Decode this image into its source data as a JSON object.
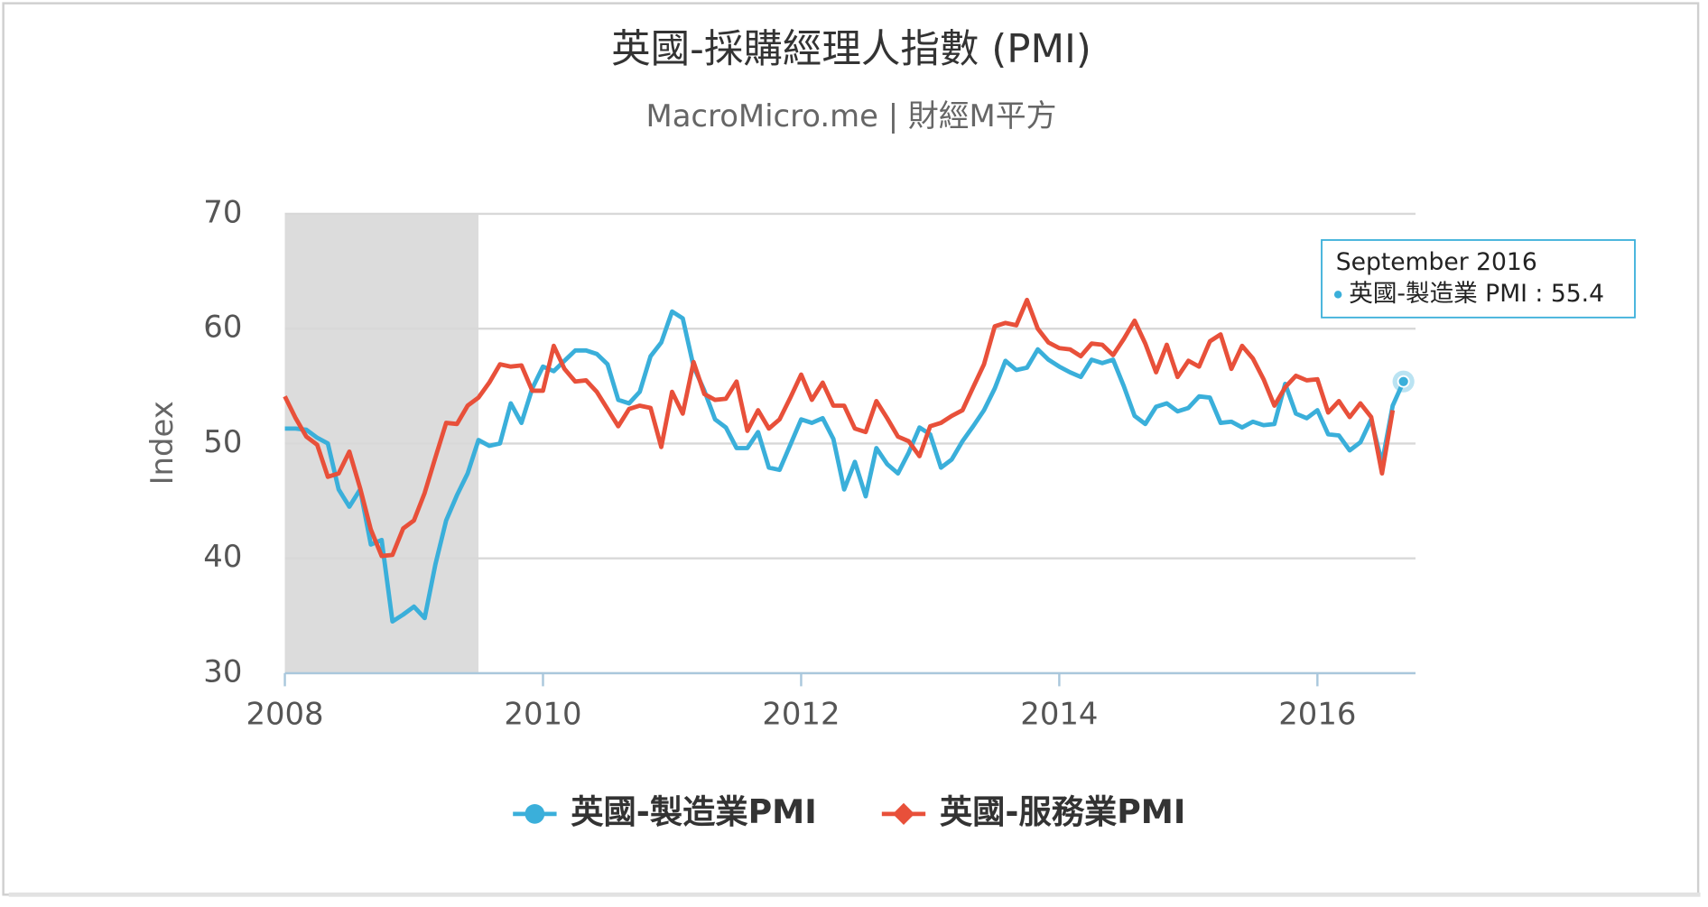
{
  "chart_data": {
    "type": "line",
    "title": "英國-採購經理人指數 (PMI)",
    "subtitle": "MacroMicro.me | 財經M平方",
    "y_label": "Index",
    "x": [
      "2008-01",
      "2008-02",
      "2008-03",
      "2008-04",
      "2008-05",
      "2008-06",
      "2008-07",
      "2008-08",
      "2008-09",
      "2008-10",
      "2008-11",
      "2008-12",
      "2009-01",
      "2009-02",
      "2009-03",
      "2009-04",
      "2009-05",
      "2009-06",
      "2009-07",
      "2009-08",
      "2009-09",
      "2009-10",
      "2009-11",
      "2009-12",
      "2010-01",
      "2010-02",
      "2010-03",
      "2010-04",
      "2010-05",
      "2010-06",
      "2010-07",
      "2010-08",
      "2010-09",
      "2010-10",
      "2010-11",
      "2010-12",
      "2011-01",
      "2011-02",
      "2011-03",
      "2011-04",
      "2011-05",
      "2011-06",
      "2011-07",
      "2011-08",
      "2011-09",
      "2011-10",
      "2011-11",
      "2011-12",
      "2012-01",
      "2012-02",
      "2012-03",
      "2012-04",
      "2012-05",
      "2012-06",
      "2012-07",
      "2012-08",
      "2012-09",
      "2012-10",
      "2012-11",
      "2012-12",
      "2013-01",
      "2013-02",
      "2013-03",
      "2013-04",
      "2013-05",
      "2013-06",
      "2013-07",
      "2013-08",
      "2013-09",
      "2013-10",
      "2013-11",
      "2013-12",
      "2014-01",
      "2014-02",
      "2014-03",
      "2014-04",
      "2014-05",
      "2014-06",
      "2014-07",
      "2014-08",
      "2014-09",
      "2014-10",
      "2014-11",
      "2014-12",
      "2015-01",
      "2015-02",
      "2015-03",
      "2015-04",
      "2015-05",
      "2015-06",
      "2015-07",
      "2015-08",
      "2015-09",
      "2015-10",
      "2015-11",
      "2015-12",
      "2016-01",
      "2016-02",
      "2016-03",
      "2016-04",
      "2016-05",
      "2016-06",
      "2016-07",
      "2016-08",
      "2016-09"
    ],
    "series": [
      {
        "name": "英國-製造業PMI",
        "color": "#3aafda",
        "marker": "circle",
        "values": [
          51.3,
          51.3,
          51.2,
          50.5,
          50.0,
          46.0,
          44.5,
          46.0,
          41.2,
          41.6,
          34.5,
          35.1,
          35.8,
          34.8,
          39.5,
          43.3,
          45.5,
          47.4,
          50.3,
          49.8,
          50.0,
          53.5,
          51.8,
          54.8,
          56.7,
          56.3,
          57.2,
          58.1,
          58.1,
          57.8,
          56.9,
          53.8,
          53.5,
          54.5,
          57.6,
          58.8,
          61.5,
          60.9,
          56.7,
          54.6,
          52.1,
          51.4,
          49.6,
          49.6,
          51.0,
          47.9,
          47.7,
          49.9,
          52.1,
          51.8,
          52.2,
          50.4,
          46.0,
          48.4,
          45.4,
          49.6,
          48.2,
          47.4,
          49.2,
          51.4,
          50.8,
          47.9,
          48.6,
          50.2,
          51.5,
          52.9,
          54.8,
          57.2,
          56.4,
          56.6,
          58.2,
          57.3,
          56.7,
          56.2,
          55.8,
          57.3,
          57.0,
          57.3,
          55.0,
          52.4,
          51.7,
          53.2,
          53.5,
          52.8,
          53.1,
          54.1,
          54.0,
          51.8,
          51.9,
          51.4,
          51.9,
          51.6,
          51.7,
          55.2,
          52.6,
          52.2,
          52.9,
          50.8,
          50.7,
          49.4,
          50.1,
          52.1,
          48.3,
          53.3,
          55.4
        ]
      },
      {
        "name": "英國-服務業PMI",
        "color": "#e8503a",
        "marker": "diamond",
        "values": [
          54.1,
          52.2,
          50.6,
          49.9,
          47.1,
          47.4,
          49.3,
          46.1,
          42.5,
          40.2,
          40.3,
          42.6,
          43.3,
          45.7,
          48.8,
          51.8,
          51.7,
          53.3,
          54.0,
          55.3,
          56.9,
          56.7,
          56.8,
          54.6,
          54.6,
          58.5,
          56.5,
          55.4,
          55.5,
          54.5,
          53.0,
          51.5,
          53.0,
          53.3,
          53.1,
          49.7,
          54.5,
          52.6,
          57.1,
          54.3,
          53.8,
          53.9,
          55.4,
          51.1,
          52.9,
          51.3,
          52.1,
          54.0,
          56.0,
          53.8,
          55.3,
          53.3,
          53.3,
          51.3,
          51.0,
          53.7,
          52.2,
          50.6,
          50.2,
          48.9,
          51.5,
          51.8,
          52.4,
          52.9,
          54.9,
          56.9,
          60.2,
          60.5,
          60.3,
          62.5,
          60.0,
          58.8,
          58.3,
          58.2,
          57.6,
          58.7,
          58.6,
          57.7,
          59.1,
          60.7,
          58.7,
          56.2,
          58.6,
          55.8,
          57.2,
          56.7,
          58.9,
          59.5,
          56.5,
          58.5,
          57.4,
          55.6,
          53.3,
          54.9,
          55.9,
          55.5,
          55.6,
          52.7,
          53.7,
          52.3,
          53.5,
          52.3,
          47.4,
          52.9,
          null
        ]
      }
    ],
    "xlim": [
      2008,
      2016.76
    ],
    "xticks": [
      2008,
      2010,
      2012,
      2014,
      2016
    ],
    "ylim": [
      30,
      70
    ],
    "yticks": [
      30,
      40,
      50,
      60,
      70
    ],
    "grid": true,
    "shaded_ranges": [
      [
        "2008-01",
        "2009-07"
      ]
    ],
    "tooltip": {
      "title": "September 2016",
      "label": "英國-製造業 PMI : 55.4",
      "point": "chart_data.series.0.values.104"
    }
  }
}
